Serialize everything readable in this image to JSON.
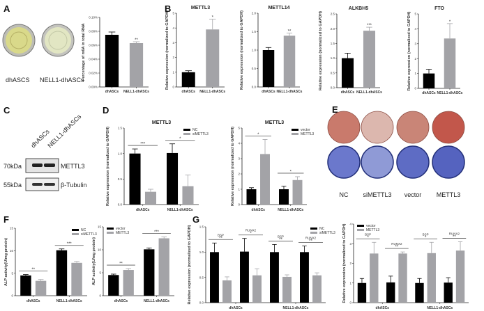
{
  "panels": {
    "A": "A",
    "B": "B",
    "C": "C",
    "D": "D",
    "E": "E",
    "F": "F",
    "G": "G"
  },
  "colors": {
    "black_bar": "#000000",
    "grey_bar": "#a3a3a7"
  },
  "panel_a": {
    "dish_labels": [
      "dhASCS",
      "NELL1-dhASCs"
    ],
    "dish_colors": [
      "#d9d98a",
      "#e2e6c3"
    ]
  },
  "panel_c": {
    "lane_labels": [
      "dhASCs",
      "NELL1-dhASCs"
    ],
    "bands": [
      {
        "size": "70kDa",
        "protein": "METTL3"
      },
      {
        "size": "55kDa",
        "protein": "β-Tubulin"
      }
    ]
  },
  "panel_e": {
    "labels": [
      "NC",
      "siMETTL3",
      "vector",
      "METTL3"
    ],
    "top_row_colors": [
      "#c97a6c",
      "#dcb7ae",
      "#c98577",
      "#c2574b"
    ],
    "bottom_row_colors": [
      "#6b78cc",
      "#8f9ad6",
      "#5e6cc4",
      "#5563bf"
    ]
  },
  "chart_data": [
    {
      "id": "A",
      "type": "bar",
      "title": "",
      "ylabel": "Percentage of m6A in total RNA",
      "ylim": [
        0,
        0.1
      ],
      "yticks": [
        "0.00%",
        "0.02%",
        "0.04%",
        "0.06%",
        "0.08%",
        "0.10%"
      ],
      "legend": [],
      "categories": [
        "dhASCs",
        "NELL1-dhASCs"
      ],
      "clusters": [
        {
          "category": 0,
          "bars": [
            {
              "value": 0.075,
              "error": 0.004
            }
          ],
          "sig": ""
        },
        {
          "category": 1,
          "bars": [
            {
              "value": 0.063,
              "error": 0.002
            }
          ],
          "sig": "**"
        }
      ]
    },
    {
      "id": "B1",
      "type": "bar",
      "title": "METTL3",
      "ylabel": "Relative expression (normalized to GAPDH)",
      "ylim": [
        0,
        5
      ],
      "yticks": [
        "0",
        "1",
        "2",
        "3",
        "4",
        "5"
      ],
      "legend": [],
      "categories": [
        "dhASCs",
        "NELL1-dhASCs"
      ],
      "clusters": [
        {
          "category": 0,
          "bars": [
            {
              "value": 1.0,
              "error": 0.1
            }
          ],
          "sig": ""
        },
        {
          "category": 1,
          "bars": [
            {
              "value": 3.9,
              "error": 0.7
            }
          ],
          "sig": "*"
        }
      ]
    },
    {
      "id": "B2",
      "type": "bar",
      "title": "METTL14",
      "ylabel": "Relative expression (normalized to GAPDH)",
      "ylim": [
        0,
        2
      ],
      "yticks": [
        "0.0",
        "0.5",
        "1.0",
        "1.5",
        "2.0"
      ],
      "legend": [],
      "categories": [
        "dhASCs",
        "NELL1-dhASCs"
      ],
      "clusters": [
        {
          "category": 0,
          "bars": [
            {
              "value": 1.0,
              "error": 0.07
            }
          ],
          "sig": ""
        },
        {
          "category": 1,
          "bars": [
            {
              "value": 1.39,
              "error": 0.07
            }
          ],
          "sig": "**"
        }
      ]
    },
    {
      "id": "B3",
      "type": "bar",
      "title": "ALKBH5",
      "ylabel": "Relative expression (normalized to GAPDH)",
      "ylim": [
        0,
        2.5
      ],
      "yticks": [
        "0.0",
        "0.5",
        "1.0",
        "1.5",
        "2.0",
        "2.5"
      ],
      "legend": [],
      "categories": [
        "dhASCs",
        "NELL1-dhASCs"
      ],
      "clusters": [
        {
          "category": 0,
          "bars": [
            {
              "value": 1.0,
              "error": 0.17
            }
          ],
          "sig": ""
        },
        {
          "category": 1,
          "bars": [
            {
              "value": 1.93,
              "error": 0.12
            }
          ],
          "sig": "***"
        }
      ]
    },
    {
      "id": "B4",
      "type": "bar",
      "title": "FTO",
      "ylabel": "Relative expression (normalized to GAPDH)",
      "ylim": [
        0,
        5
      ],
      "yticks": [
        "0",
        "1",
        "2",
        "3",
        "4",
        "5"
      ],
      "legend": [],
      "categories": [
        "dhASCs",
        "NELL1-dhASCs"
      ],
      "clusters": [
        {
          "category": 0,
          "bars": [
            {
              "value": 1.0,
              "error": 0.28
            }
          ],
          "sig": ""
        },
        {
          "category": 1,
          "bars": [
            {
              "value": 3.35,
              "error": 1.0
            }
          ],
          "sig": "*"
        }
      ]
    },
    {
      "id": "D1",
      "type": "bar",
      "title": "METTL3",
      "ylabel": "Relative expression (normalized to GAPDH)",
      "ylim": [
        0,
        1.5
      ],
      "yticks": [
        "0.0",
        "0.5",
        "1.0",
        "1.5"
      ],
      "legend": [
        "NC",
        "siMETTL3"
      ],
      "categories": [
        "dhASCs",
        "NELL1-dhASCs"
      ],
      "clusters": [
        {
          "category": 0,
          "bars": [
            {
              "value": 1.0,
              "error": 0.09
            },
            {
              "value": 0.25,
              "error": 0.05
            }
          ],
          "sig": "***"
        },
        {
          "category": 1,
          "bars": [
            {
              "value": 1.01,
              "error": 0.18
            },
            {
              "value": 0.36,
              "error": 0.22
            }
          ],
          "sig": "*"
        }
      ]
    },
    {
      "id": "D2",
      "type": "bar",
      "title": "METTL3",
      "ylabel": "Relative expression (normalized to GAPDH)",
      "ylim": [
        0,
        5
      ],
      "yticks": [
        "0",
        "1",
        "2",
        "3",
        "4",
        "5"
      ],
      "legend": [
        "vector",
        "METTL3"
      ],
      "categories": [
        "dhASCs",
        "NELL1-dhASCs"
      ],
      "clusters": [
        {
          "category": 0,
          "bars": [
            {
              "value": 1.0,
              "error": 0.1
            },
            {
              "value": 3.3,
              "error": 0.95
            }
          ],
          "sig": "*"
        },
        {
          "category": 1,
          "bars": [
            {
              "value": 1.0,
              "error": 0.2
            },
            {
              "value": 1.6,
              "error": 0.22
            }
          ],
          "sig": "*"
        }
      ]
    },
    {
      "id": "F1",
      "type": "bar",
      "title": "",
      "ylabel": "ALP activity(U/mg protein)",
      "ylim": [
        0,
        15
      ],
      "yticks": [
        "0",
        "5",
        "10",
        "15"
      ],
      "legend": [
        "NC",
        "siMETTL3"
      ],
      "categories": [
        "dhASCs",
        "NELL1-dhASCs"
      ],
      "clusters": [
        {
          "category": 0,
          "bars": [
            {
              "value": 4.5,
              "error": 0.2
            },
            {
              "value": 3.3,
              "error": 0.3
            }
          ],
          "sig": "**"
        },
        {
          "category": 1,
          "bars": [
            {
              "value": 10.1,
              "error": 0.3
            },
            {
              "value": 7.3,
              "error": 0.3
            }
          ],
          "sig": "***"
        }
      ]
    },
    {
      "id": "F2",
      "type": "bar",
      "title": "",
      "ylabel": "ALP activity(U/mg protein)",
      "ylim": [
        0,
        15
      ],
      "yticks": [
        "0",
        "5",
        "10",
        "15"
      ],
      "legend": [
        "vector",
        "METTL3"
      ],
      "categories": [
        "dhASCs",
        "NELL1-dhASCs"
      ],
      "clusters": [
        {
          "category": 0,
          "bars": [
            {
              "value": 4.5,
              "error": 0.2
            },
            {
              "value": 5.6,
              "error": 0.3
            }
          ],
          "sig": "**"
        },
        {
          "category": 1,
          "bars": [
            {
              "value": 10.1,
              "error": 0.3
            },
            {
              "value": 12.5,
              "error": 0.3
            }
          ],
          "sig": "***"
        }
      ]
    },
    {
      "id": "G1",
      "type": "bar",
      "title": "",
      "ylabel": "Relative expression (normalized to GAPDH)",
      "ylim": [
        0,
        1.5
      ],
      "yticks": [
        "0.0",
        "0.5",
        "1.0",
        "1.5"
      ],
      "legend": [
        "NC",
        "siMETTL3"
      ],
      "categories": [
        "dhASCs",
        "NELL1-dhASCs"
      ],
      "clusters": [
        {
          "category": 0,
          "gene": "BSP",
          "bars": [
            {
              "value": 1.0,
              "error": 0.18
            },
            {
              "value": 0.44,
              "error": 0.07
            }
          ],
          "sig": "**"
        },
        {
          "category": 0,
          "gene": "RUNX2",
          "bars": [
            {
              "value": 1.01,
              "error": 0.26
            },
            {
              "value": 0.54,
              "error": 0.13
            }
          ],
          "sig": "*"
        },
        {
          "category": 1,
          "gene": "BSP",
          "bars": [
            {
              "value": 1.0,
              "error": 0.15
            },
            {
              "value": 0.51,
              "error": 0.04
            }
          ],
          "sig": "**"
        },
        {
          "category": 1,
          "gene": "RUNX2",
          "bars": [
            {
              "value": 1.0,
              "error": 0.12
            },
            {
              "value": 0.54,
              "error": 0.05
            }
          ],
          "sig": "**"
        }
      ]
    },
    {
      "id": "G2",
      "type": "bar",
      "title": "",
      "ylabel": "Relative expression (normalized to GAPDH)",
      "ylim": [
        0,
        4
      ],
      "yticks": [
        "0",
        "1",
        "2",
        "3",
        "4"
      ],
      "legend": [
        "vector",
        "METTL3"
      ],
      "categories": [
        "dhASCs",
        "NELL1-dhASCs"
      ],
      "clusters": [
        {
          "category": 0,
          "gene": "BSP",
          "bars": [
            {
              "value": 1.0,
              "error": 0.23
            },
            {
              "value": 2.5,
              "error": 0.57
            }
          ],
          "sig": "*"
        },
        {
          "category": 0,
          "gene": "RUNX2",
          "bars": [
            {
              "value": 1.03,
              "error": 0.32
            },
            {
              "value": 2.5,
              "error": 0.08
            }
          ],
          "sig": "**"
        },
        {
          "category": 1,
          "gene": "BSP",
          "bars": [
            {
              "value": 1.0,
              "error": 0.23
            },
            {
              "value": 2.52,
              "error": 0.55
            }
          ],
          "sig": "*"
        },
        {
          "category": 1,
          "gene": "RUNX2",
          "bars": [
            {
              "value": 1.02,
              "error": 0.25
            },
            {
              "value": 2.65,
              "error": 0.45
            }
          ],
          "sig": "**"
        }
      ]
    }
  ]
}
